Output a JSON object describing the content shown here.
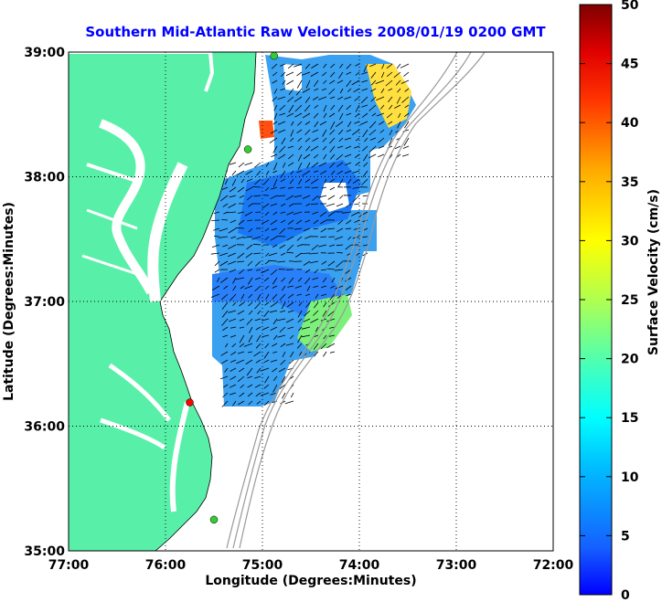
{
  "chart_data": {
    "type": "heatmap",
    "title": "Southern Mid-Atlantic Raw Velocities 2008/01/19 0200 GMT",
    "xlabel": "Longitude (Degrees:Minutes)",
    "ylabel": "Latitude (Degrees:Minutes)",
    "x_ticks": [
      "77:00",
      "76:00",
      "75:00",
      "74:00",
      "73:00",
      "72:00"
    ],
    "y_ticks": [
      "39:00",
      "38:00",
      "37:00",
      "36:00",
      "35:00"
    ],
    "x_range": [
      -77,
      -72
    ],
    "y_range": [
      35,
      39
    ],
    "grid": true,
    "colorbar": {
      "label": "Surface Velocity (cm/s)",
      "range": [
        0,
        50
      ],
      "ticks": [
        "0",
        "5",
        "10",
        "15",
        "20",
        "25",
        "30",
        "35",
        "40",
        "45",
        "50"
      ]
    },
    "stations": [
      {
        "lon": -74.88,
        "lat": 38.97,
        "color": "#33cc33"
      },
      {
        "lon": -75.15,
        "lat": 38.22,
        "color": "#33cc33"
      },
      {
        "lon": -75.75,
        "lat": 36.19,
        "color": "#ff0000"
      },
      {
        "lon": -75.5,
        "lat": 35.25,
        "color": "#33cc33"
      }
    ]
  },
  "colors": {
    "land": "#58f0a8",
    "title": "#0000ff",
    "water": "#ffffff",
    "bathymetry": "#999999"
  }
}
